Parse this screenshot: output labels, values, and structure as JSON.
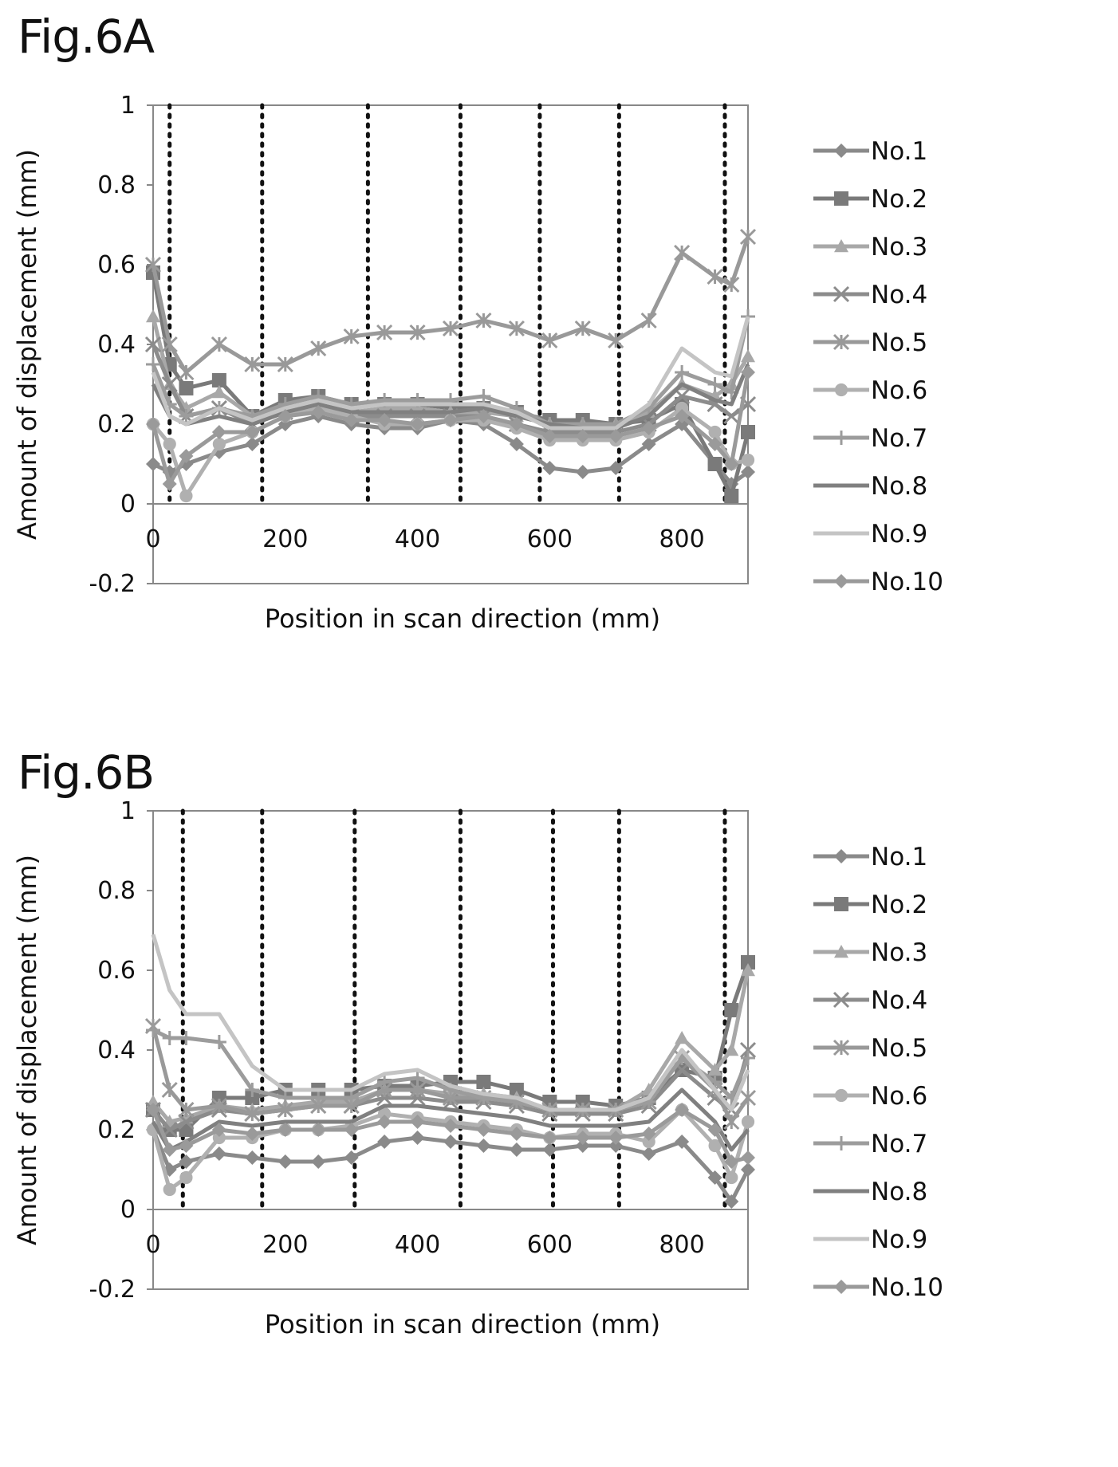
{
  "figures": [
    {
      "title": "Fig.6A"
    },
    {
      "title": "Fig.6B"
    }
  ],
  "chart_data": [
    {
      "type": "line",
      "xlabel": "Position in scan direction (mm)",
      "ylabel": "Amount of displacement (mm)",
      "xlim": [
        0,
        900
      ],
      "ylim": [
        -0.2,
        1
      ],
      "xticks": [
        "0",
        "200",
        "400",
        "600",
        "800"
      ],
      "yticks": [
        "-0.2",
        "0",
        "0.2",
        "0.4",
        "0.6",
        "0.8",
        "1"
      ],
      "legend_position": "right",
      "reference_lines_x": [
        25,
        165,
        325,
        465,
        585,
        705,
        865
      ],
      "series": [
        {
          "name": "No.1",
          "marker": "diamond",
          "color": "#8a8a8a",
          "x": [
            0,
            25,
            50,
            100,
            150,
            200,
            250,
            300,
            350,
            400,
            450,
            500,
            550,
            600,
            650,
            700,
            750,
            800,
            850,
            875,
            900
          ],
          "y": [
            0.1,
            0.08,
            0.1,
            0.13,
            0.15,
            0.2,
            0.22,
            0.2,
            0.19,
            0.19,
            0.21,
            0.2,
            0.15,
            0.09,
            0.08,
            0.09,
            0.15,
            0.2,
            0.1,
            0.05,
            0.08
          ]
        },
        {
          "name": "No.2",
          "marker": "square",
          "color": "#7a7a7a",
          "x": [
            0,
            25,
            50,
            100,
            150,
            200,
            250,
            300,
            350,
            400,
            450,
            500,
            550,
            600,
            650,
            700,
            750,
            800,
            850,
            875,
            900
          ],
          "y": [
            0.58,
            0.35,
            0.29,
            0.31,
            0.22,
            0.26,
            0.27,
            0.25,
            0.25,
            0.25,
            0.24,
            0.24,
            0.23,
            0.21,
            0.21,
            0.2,
            0.21,
            0.25,
            0.1,
            0.02,
            0.18
          ]
        },
        {
          "name": "No.3",
          "marker": "triangle",
          "color": "#a8a8a8",
          "x": [
            0,
            25,
            50,
            100,
            150,
            200,
            250,
            300,
            350,
            400,
            450,
            500,
            550,
            600,
            650,
            700,
            750,
            800,
            850,
            875,
            900
          ],
          "y": [
            0.47,
            0.3,
            0.24,
            0.28,
            0.22,
            0.24,
            0.25,
            0.23,
            0.24,
            0.24,
            0.23,
            0.23,
            0.22,
            0.2,
            0.2,
            0.2,
            0.23,
            0.3,
            0.27,
            0.3,
            0.37
          ]
        },
        {
          "name": "No.4",
          "marker": "x",
          "color": "#8c8c8c",
          "x": [
            0,
            25,
            50,
            100,
            150,
            200,
            250,
            300,
            350,
            400,
            450,
            500,
            550,
            600,
            650,
            700,
            750,
            800,
            850,
            875,
            900
          ],
          "y": [
            0.4,
            0.3,
            0.22,
            0.24,
            0.2,
            0.23,
            0.24,
            0.22,
            0.22,
            0.22,
            0.22,
            0.22,
            0.2,
            0.18,
            0.18,
            0.18,
            0.2,
            0.27,
            0.25,
            0.22,
            0.25
          ]
        },
        {
          "name": "No.5",
          "marker": "asterisk",
          "color": "#999999",
          "x": [
            0,
            25,
            50,
            100,
            150,
            200,
            250,
            300,
            350,
            400,
            450,
            500,
            550,
            600,
            650,
            700,
            750,
            800,
            850,
            875,
            900
          ],
          "y": [
            0.6,
            0.4,
            0.33,
            0.4,
            0.35,
            0.35,
            0.39,
            0.42,
            0.43,
            0.43,
            0.44,
            0.46,
            0.44,
            0.41,
            0.44,
            0.41,
            0.46,
            0.63,
            0.57,
            0.55,
            0.67
          ]
        },
        {
          "name": "No.6",
          "marker": "circle",
          "color": "#b0b0b0",
          "x": [
            0,
            25,
            50,
            100,
            150,
            200,
            250,
            300,
            350,
            400,
            450,
            500,
            550,
            600,
            650,
            700,
            750,
            800,
            850,
            875,
            900
          ],
          "y": [
            0.2,
            0.15,
            0.02,
            0.15,
            0.18,
            0.22,
            0.24,
            0.22,
            0.2,
            0.2,
            0.21,
            0.21,
            0.19,
            0.16,
            0.16,
            0.16,
            0.18,
            0.24,
            0.18,
            0.1,
            0.11
          ]
        },
        {
          "name": "No.7",
          "marker": "plus",
          "color": "#9c9c9c",
          "x": [
            0,
            25,
            50,
            100,
            150,
            200,
            250,
            300,
            350,
            400,
            450,
            500,
            550,
            600,
            650,
            700,
            750,
            800,
            850,
            875,
            900
          ],
          "y": [
            0.35,
            0.25,
            0.22,
            0.24,
            0.22,
            0.25,
            0.27,
            0.25,
            0.26,
            0.26,
            0.26,
            0.27,
            0.24,
            0.2,
            0.2,
            0.2,
            0.24,
            0.33,
            0.3,
            0.28,
            0.47
          ]
        },
        {
          "name": "No.8",
          "marker": "none",
          "color": "#808080",
          "x": [
            0,
            25,
            50,
            100,
            150,
            200,
            250,
            300,
            350,
            400,
            450,
            500,
            550,
            600,
            650,
            700,
            750,
            800,
            850,
            875,
            900
          ],
          "y": [
            0.3,
            0.22,
            0.2,
            0.22,
            0.2,
            0.23,
            0.25,
            0.23,
            0.23,
            0.23,
            0.23,
            0.24,
            0.22,
            0.2,
            0.19,
            0.19,
            0.22,
            0.3,
            0.26,
            0.25,
            0.35
          ]
        },
        {
          "name": "No.9",
          "marker": "none",
          "color": "#c4c4c4",
          "x": [
            0,
            25,
            50,
            100,
            150,
            200,
            250,
            300,
            350,
            400,
            450,
            500,
            550,
            600,
            650,
            700,
            750,
            800,
            850,
            875,
            900
          ],
          "y": [
            0.33,
            0.22,
            0.2,
            0.24,
            0.21,
            0.24,
            0.26,
            0.24,
            0.25,
            0.25,
            0.25,
            0.25,
            0.23,
            0.19,
            0.19,
            0.19,
            0.25,
            0.39,
            0.33,
            0.32,
            0.47
          ]
        },
        {
          "name": "No.10",
          "marker": "diamond",
          "color": "#9a9a9a",
          "x": [
            0,
            25,
            50,
            100,
            150,
            200,
            250,
            300,
            350,
            400,
            450,
            500,
            550,
            600,
            650,
            700,
            750,
            800,
            850,
            875,
            900
          ],
          "y": [
            0.2,
            0.05,
            0.12,
            0.18,
            0.18,
            0.22,
            0.23,
            0.21,
            0.21,
            0.2,
            0.21,
            0.22,
            0.2,
            0.17,
            0.17,
            0.17,
            0.19,
            0.22,
            0.15,
            0.1,
            0.33
          ]
        }
      ]
    },
    {
      "type": "line",
      "xlabel": "Position in scan direction (mm)",
      "ylabel": "Amount of displacement (mm)",
      "xlim": [
        0,
        900
      ],
      "ylim": [
        -0.2,
        1
      ],
      "xticks": [
        "0",
        "200",
        "400",
        "600",
        "800"
      ],
      "yticks": [
        "-0.2",
        "0",
        "0.2",
        "0.4",
        "0.6",
        "0.8",
        "1"
      ],
      "legend_position": "right",
      "reference_lines_x": [
        45,
        165,
        305,
        465,
        605,
        705,
        865
      ],
      "series": [
        {
          "name": "No.1",
          "marker": "diamond",
          "color": "#8a8a8a",
          "x": [
            0,
            25,
            50,
            100,
            150,
            200,
            250,
            300,
            350,
            400,
            450,
            500,
            550,
            600,
            650,
            700,
            750,
            800,
            850,
            875,
            900
          ],
          "y": [
            0.2,
            0.1,
            0.12,
            0.14,
            0.13,
            0.12,
            0.12,
            0.13,
            0.17,
            0.18,
            0.17,
            0.16,
            0.15,
            0.15,
            0.16,
            0.16,
            0.14,
            0.17,
            0.08,
            0.02,
            0.1
          ]
        },
        {
          "name": "No.2",
          "marker": "square",
          "color": "#7a7a7a",
          "x": [
            0,
            25,
            50,
            100,
            150,
            200,
            250,
            300,
            350,
            400,
            450,
            500,
            550,
            600,
            650,
            700,
            750,
            800,
            850,
            875,
            900
          ],
          "y": [
            0.25,
            0.2,
            0.2,
            0.28,
            0.28,
            0.3,
            0.3,
            0.3,
            0.31,
            0.31,
            0.32,
            0.32,
            0.3,
            0.27,
            0.27,
            0.26,
            0.28,
            0.35,
            0.33,
            0.5,
            0.62
          ]
        },
        {
          "name": "No.3",
          "marker": "triangle",
          "color": "#a8a8a8",
          "x": [
            0,
            25,
            50,
            100,
            150,
            200,
            250,
            300,
            350,
            400,
            450,
            500,
            550,
            600,
            650,
            700,
            750,
            800,
            850,
            875,
            900
          ],
          "y": [
            0.27,
            0.22,
            0.23,
            0.26,
            0.25,
            0.26,
            0.27,
            0.27,
            0.3,
            0.3,
            0.29,
            0.29,
            0.28,
            0.25,
            0.25,
            0.25,
            0.3,
            0.43,
            0.35,
            0.4,
            0.6
          ]
        },
        {
          "name": "No.4",
          "marker": "x",
          "color": "#8c8c8c",
          "x": [
            0,
            25,
            50,
            100,
            150,
            200,
            250,
            300,
            350,
            400,
            450,
            500,
            550,
            600,
            650,
            700,
            750,
            800,
            850,
            875,
            900
          ],
          "y": [
            0.25,
            0.2,
            0.22,
            0.25,
            0.24,
            0.25,
            0.26,
            0.26,
            0.28,
            0.28,
            0.27,
            0.27,
            0.26,
            0.24,
            0.24,
            0.24,
            0.26,
            0.35,
            0.28,
            0.25,
            0.4
          ]
        },
        {
          "name": "No.5",
          "marker": "asterisk",
          "color": "#999999",
          "x": [
            0,
            25,
            50,
            100,
            150,
            200,
            250,
            300,
            350,
            400,
            450,
            500,
            550,
            600,
            650,
            700,
            750,
            800,
            850,
            875,
            900
          ],
          "y": [
            0.46,
            0.3,
            0.25,
            0.26,
            0.24,
            0.25,
            0.26,
            0.26,
            0.3,
            0.3,
            0.28,
            0.28,
            0.27,
            0.25,
            0.25,
            0.25,
            0.27,
            0.38,
            0.3,
            0.22,
            0.28
          ]
        },
        {
          "name": "No.6",
          "marker": "circle",
          "color": "#b0b0b0",
          "x": [
            0,
            25,
            50,
            100,
            150,
            200,
            250,
            300,
            350,
            400,
            450,
            500,
            550,
            600,
            650,
            700,
            750,
            800,
            850,
            875,
            900
          ],
          "y": [
            0.2,
            0.05,
            0.08,
            0.18,
            0.18,
            0.2,
            0.2,
            0.21,
            0.24,
            0.23,
            0.22,
            0.21,
            0.2,
            0.18,
            0.19,
            0.19,
            0.17,
            0.25,
            0.16,
            0.08,
            0.22
          ]
        },
        {
          "name": "No.7",
          "marker": "plus",
          "color": "#9c9c9c",
          "x": [
            0,
            25,
            50,
            100,
            150,
            200,
            250,
            300,
            350,
            400,
            450,
            500,
            550,
            600,
            650,
            700,
            750,
            800,
            850,
            875,
            900
          ],
          "y": [
            0.45,
            0.43,
            0.43,
            0.42,
            0.3,
            0.28,
            0.28,
            0.28,
            0.32,
            0.33,
            0.3,
            0.28,
            0.27,
            0.25,
            0.25,
            0.25,
            0.27,
            0.38,
            0.32,
            0.28,
            0.38
          ]
        },
        {
          "name": "No.8",
          "marker": "none",
          "color": "#808080",
          "x": [
            0,
            25,
            50,
            100,
            150,
            200,
            250,
            300,
            350,
            400,
            450,
            500,
            550,
            600,
            650,
            700,
            750,
            800,
            850,
            875,
            900
          ],
          "y": [
            0.22,
            0.15,
            0.17,
            0.22,
            0.21,
            0.22,
            0.22,
            0.22,
            0.26,
            0.26,
            0.25,
            0.24,
            0.23,
            0.21,
            0.21,
            0.21,
            0.22,
            0.3,
            0.22,
            0.15,
            0.2
          ]
        },
        {
          "name": "No.9",
          "marker": "none",
          "color": "#c4c4c4",
          "x": [
            0,
            25,
            50,
            100,
            150,
            200,
            250,
            300,
            350,
            400,
            450,
            500,
            550,
            600,
            650,
            700,
            750,
            800,
            850,
            875,
            900
          ],
          "y": [
            0.69,
            0.55,
            0.49,
            0.49,
            0.36,
            0.3,
            0.3,
            0.3,
            0.34,
            0.35,
            0.31,
            0.29,
            0.28,
            0.25,
            0.25,
            0.25,
            0.28,
            0.4,
            0.3,
            0.25,
            0.35
          ]
        },
        {
          "name": "No.10",
          "marker": "diamond",
          "color": "#9a9a9a",
          "x": [
            0,
            25,
            50,
            100,
            150,
            200,
            250,
            300,
            350,
            400,
            450,
            500,
            550,
            600,
            650,
            700,
            750,
            800,
            850,
            875,
            900
          ],
          "y": [
            0.25,
            0.15,
            0.16,
            0.2,
            0.19,
            0.2,
            0.2,
            0.2,
            0.22,
            0.22,
            0.21,
            0.2,
            0.19,
            0.18,
            0.18,
            0.18,
            0.19,
            0.25,
            0.2,
            0.12,
            0.13
          ]
        }
      ]
    }
  ]
}
